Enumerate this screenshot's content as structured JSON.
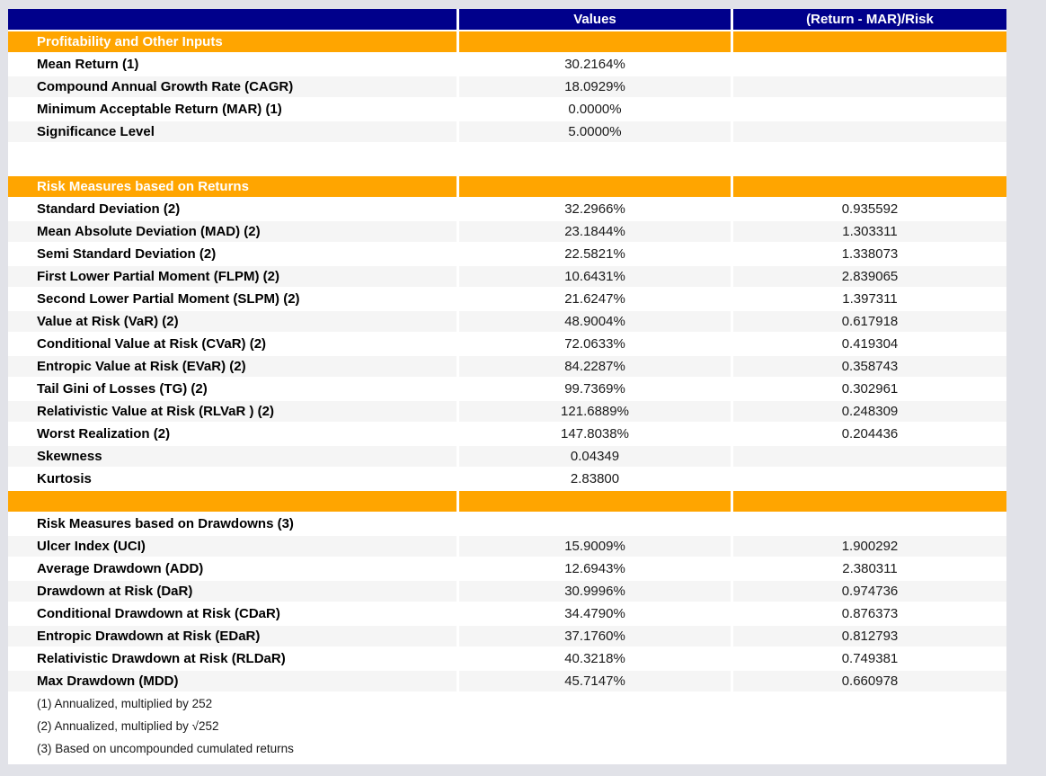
{
  "colors": {
    "page_bg": "#e1e2e8",
    "header_bg": "#00008B",
    "section_bg": "#FFA500",
    "stripe_bg": "#F5F5F5",
    "row_bg": "#ffffff",
    "header_text": "#ffffff"
  },
  "table": {
    "header": {
      "metric": "",
      "values": "Values",
      "ratio": "(Return - MAR)/Risk"
    },
    "rows": [
      {
        "type": "section",
        "label": "Profitability and Other Inputs"
      },
      {
        "type": "data",
        "label": "Mean Return (1)",
        "value": "30.2164%",
        "ratio": ""
      },
      {
        "type": "data",
        "label": "Compound Annual Growth Rate (CAGR)",
        "value": "18.0929%",
        "ratio": ""
      },
      {
        "type": "data",
        "label": "Minimum Acceptable Return (MAR) (1)",
        "value": "0.0000%",
        "ratio": ""
      },
      {
        "type": "data",
        "label": "Significance Level",
        "value": "5.0000%",
        "ratio": ""
      },
      {
        "type": "spacer"
      },
      {
        "type": "section",
        "label": "Risk Measures based on Returns"
      },
      {
        "type": "data",
        "label": "Standard Deviation (2)",
        "value": "32.2966%",
        "ratio": "0.935592"
      },
      {
        "type": "data",
        "label": "Mean Absolute Deviation (MAD) (2)",
        "value": "23.1844%",
        "ratio": "1.303311"
      },
      {
        "type": "data",
        "label": "Semi Standard Deviation (2)",
        "value": "22.5821%",
        "ratio": "1.338073"
      },
      {
        "type": "data",
        "label": "First Lower Partial Moment (FLPM) (2)",
        "value": "10.6431%",
        "ratio": "2.839065"
      },
      {
        "type": "data",
        "label": "Second Lower Partial Moment (SLPM) (2)",
        "value": "21.6247%",
        "ratio": "1.397311"
      },
      {
        "type": "data",
        "label": "Value at Risk (VaR) (2)",
        "value": "48.9004%",
        "ratio": "0.617918"
      },
      {
        "type": "data",
        "label": "Conditional Value at Risk (CVaR) (2)",
        "value": "72.0633%",
        "ratio": "0.419304"
      },
      {
        "type": "data",
        "label": "Entropic Value at Risk (EVaR) (2)",
        "value": "84.2287%",
        "ratio": "0.358743"
      },
      {
        "type": "data",
        "label": "Tail Gini of Losses (TG) (2)",
        "value": "99.7369%",
        "ratio": "0.302961"
      },
      {
        "type": "data",
        "label": "Relativistic Value at Risk (RLVaR ) (2)",
        "value": "121.6889%",
        "ratio": "0.248309"
      },
      {
        "type": "data",
        "label": "Worst Realization (2)",
        "value": "147.8038%",
        "ratio": "0.204436"
      },
      {
        "type": "data",
        "label": "Skewness",
        "value": "0.04349",
        "ratio": ""
      },
      {
        "type": "data",
        "label": "Kurtosis",
        "value": "2.83800",
        "ratio": ""
      },
      {
        "type": "section",
        "label": ""
      },
      {
        "type": "data",
        "label": "Risk Measures based on Drawdowns (3)",
        "value": "",
        "ratio": ""
      },
      {
        "type": "data",
        "label": "Ulcer Index (UCI)",
        "value": "15.9009%",
        "ratio": "1.900292"
      },
      {
        "type": "data",
        "label": "Average Drawdown (ADD)",
        "value": "12.6943%",
        "ratio": "2.380311"
      },
      {
        "type": "data",
        "label": "Drawdown at Risk (DaR)",
        "value": "30.9996%",
        "ratio": "0.974736"
      },
      {
        "type": "data",
        "label": "Conditional Drawdown at Risk (CDaR)",
        "value": "34.4790%",
        "ratio": "0.876373"
      },
      {
        "type": "data",
        "label": "Entropic Drawdown at Risk (EDaR)",
        "value": "37.1760%",
        "ratio": "0.812793"
      },
      {
        "type": "data",
        "label": "Relativistic Drawdown at Risk (RLDaR)",
        "value": "40.3218%",
        "ratio": "0.749381"
      },
      {
        "type": "data",
        "label": "Max Drawdown (MDD)",
        "value": "45.7147%",
        "ratio": "0.660978"
      }
    ],
    "footnotes": [
      "(1) Annualized, multiplied by 252",
      "(2) Annualized, multiplied by √252",
      "(3) Based on uncompounded cumulated returns"
    ]
  }
}
